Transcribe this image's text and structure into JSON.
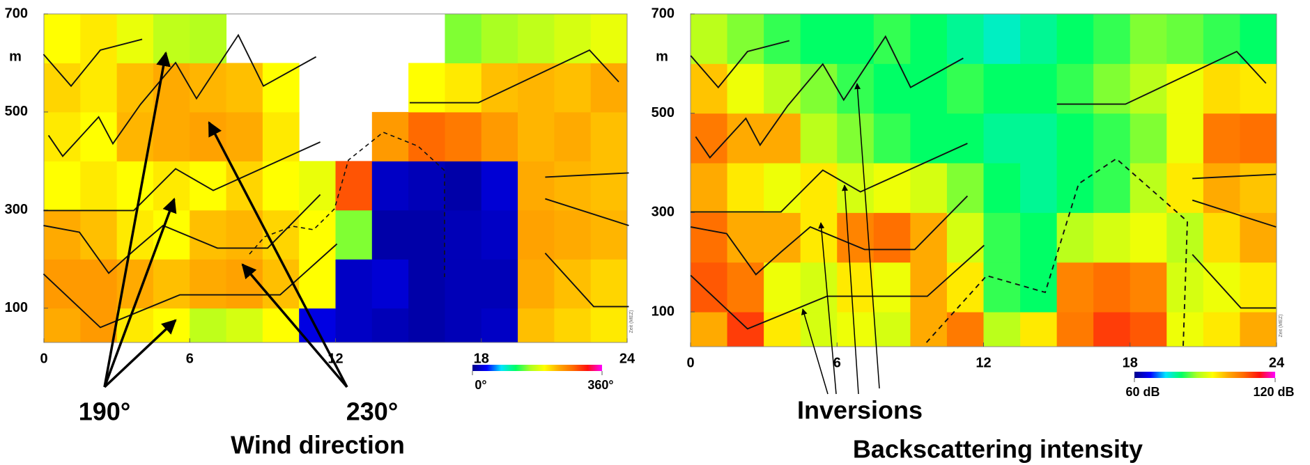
{
  "chart_data": [
    {
      "type": "heatmap",
      "xbins": [
        0,
        1.5,
        3,
        4.5,
        6,
        7.5,
        9,
        10.5,
        12,
        13.5,
        15,
        16.5,
        18,
        19.5,
        21,
        22.5,
        24
      ],
      "ybins": [
        30,
        100,
        200,
        300,
        400,
        500,
        600,
        700
      ],
      "values": [
        [
          240,
          250,
          210,
          200,
          170,
          180,
          200,
          30,
          20,
          15,
          10,
          15,
          20,
          230,
          220,
          210
        ],
        [
          250,
          250,
          240,
          230,
          240,
          245,
          230,
          200,
          20,
          25,
          10,
          15,
          15,
          240,
          230,
          220
        ],
        [
          240,
          230,
          210,
          200,
          230,
          235,
          220,
          200,
          150,
          10,
          10,
          15,
          20,
          245,
          240,
          235
        ],
        [
          200,
          210,
          200,
          210,
          200,
          220,
          200,
          190,
          290,
          20,
          15,
          10,
          25,
          240,
          235,
          230
        ],
        [
          210,
          200,
          235,
          240,
          245,
          240,
          210,
          null,
          null,
          250,
          280,
          270,
          250,
          235,
          240,
          230
        ],
        [
          220,
          210,
          230,
          240,
          235,
          230,
          200,
          null,
          null,
          null,
          200,
          210,
          230,
          235,
          230,
          240
        ],
        [
          200,
          210,
          190,
          170,
          165,
          null,
          null,
          null,
          null,
          null,
          null,
          150,
          160,
          170,
          180,
          190
        ]
      ],
      "xlim": [
        0,
        24
      ],
      "ylim": [
        30,
        700
      ],
      "xticks": [
        0,
        6,
        12,
        18,
        24
      ],
      "yticks": [
        100,
        300,
        500,
        700
      ],
      "ylabel": "m",
      "xlabel": "Zeit (MEZ)",
      "clim": [
        0,
        360
      ],
      "colorbar_ticks": [
        {
          "value": 0,
          "label": "0°"
        },
        {
          "value": 360,
          "label": "360°"
        }
      ],
      "colors": [
        "#00008b",
        "#0000ff",
        "#00e5ff",
        "#00ff66",
        "#aaff22",
        "#ffff00",
        "#ffaa00",
        "#ff6a00",
        "#ff1010",
        "#ff00ff"
      ],
      "annotations": [
        "190°",
        "230°",
        "Wind direction"
      ]
    },
    {
      "type": "heatmap",
      "xbins": [
        0,
        1.5,
        3,
        4.5,
        6,
        7.5,
        9,
        10.5,
        12,
        13.5,
        15,
        16.5,
        18,
        19.5,
        21,
        22.5,
        24
      ],
      "ybins": [
        30,
        100,
        200,
        300,
        400,
        500,
        600,
        700
      ],
      "values": [
        [
          100,
          110,
          95,
          90,
          92,
          90,
          100,
          105,
          88,
          95,
          105,
          110,
          108,
          92,
          95,
          100
        ],
        [
          108,
          105,
          92,
          90,
          95,
          92,
          100,
          95,
          82,
          80,
          104,
          106,
          104,
          90,
          92,
          95
        ],
        [
          106,
          100,
          100,
          95,
          104,
          106,
          100,
          90,
          82,
          80,
          88,
          90,
          92,
          88,
          96,
          100
        ],
        [
          100,
          95,
          92,
          95,
          90,
          92,
          90,
          85,
          80,
          78,
          80,
          82,
          88,
          95,
          100,
          98
        ],
        [
          105,
          100,
          100,
          88,
          85,
          82,
          80,
          80,
          78,
          78,
          80,
          82,
          85,
          92,
          105,
          106
        ],
        [
          98,
          92,
          88,
          85,
          82,
          80,
          80,
          82,
          80,
          80,
          82,
          85,
          88,
          92,
          96,
          95
        ],
        [
          88,
          85,
          82,
          80,
          80,
          82,
          80,
          78,
          76,
          78,
          80,
          82,
          85,
          84,
          82,
          80
        ]
      ],
      "xlim": [
        0,
        24
      ],
      "ylim": [
        30,
        700
      ],
      "xticks": [
        0,
        6,
        12,
        18,
        24
      ],
      "yticks": [
        100,
        300,
        500,
        700
      ],
      "ylabel": "m",
      "xlabel": "Zeit (MEZ)",
      "clim": [
        60,
        120
      ],
      "colorbar_ticks": [
        {
          "value": 60,
          "label": "60 dB"
        },
        {
          "value": 120,
          "label": "120 dB"
        }
      ],
      "colors": [
        "#00008b",
        "#0000ff",
        "#00e5ff",
        "#00ff66",
        "#aaff22",
        "#ffff00",
        "#ffaa00",
        "#ff6a00",
        "#ff1010",
        "#ff00ff"
      ],
      "annotations": [
        "Inversions",
        "Backscattering intensity"
      ]
    }
  ]
}
